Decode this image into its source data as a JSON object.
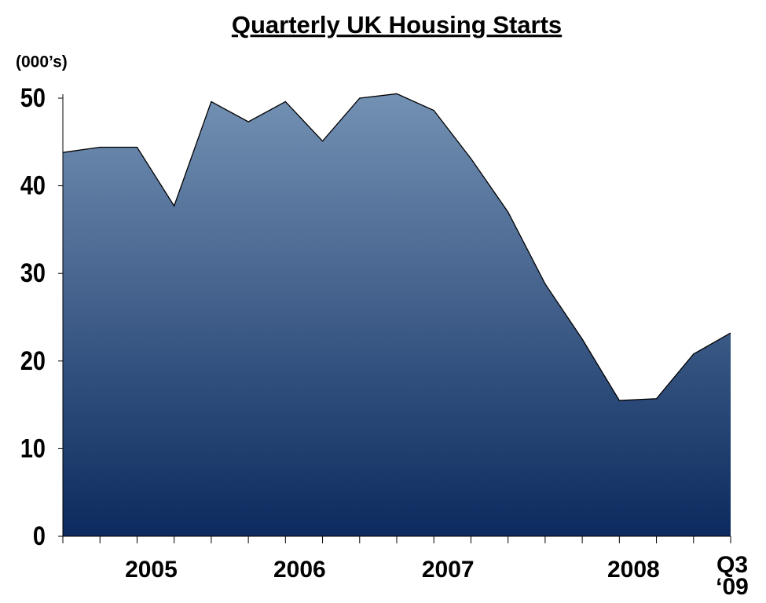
{
  "chart_data": {
    "type": "area",
    "title": "Quarterly UK Housing Starts",
    "y_axis_label": "(000’s)",
    "categories": [
      null,
      null,
      "2005",
      null,
      null,
      null,
      "2006",
      null,
      null,
      null,
      "2007",
      null,
      null,
      null,
      null,
      "2008",
      null,
      null,
      "Q3\n‘09"
    ],
    "values": [
      43.8,
      44.4,
      44.4,
      37.7,
      49.6,
      47.3,
      49.6,
      45.1,
      50.0,
      50.5,
      48.6,
      43.1,
      37.0,
      28.8,
      22.5,
      15.5,
      15.7,
      20.8,
      23.2
    ],
    "colors": [
      "#7391b3",
      "#0c2a5e"
    ],
    "ylim": [
      0,
      50
    ],
    "yticks": [
      0,
      10,
      20,
      30,
      40,
      50
    ],
    "grid": false
  }
}
